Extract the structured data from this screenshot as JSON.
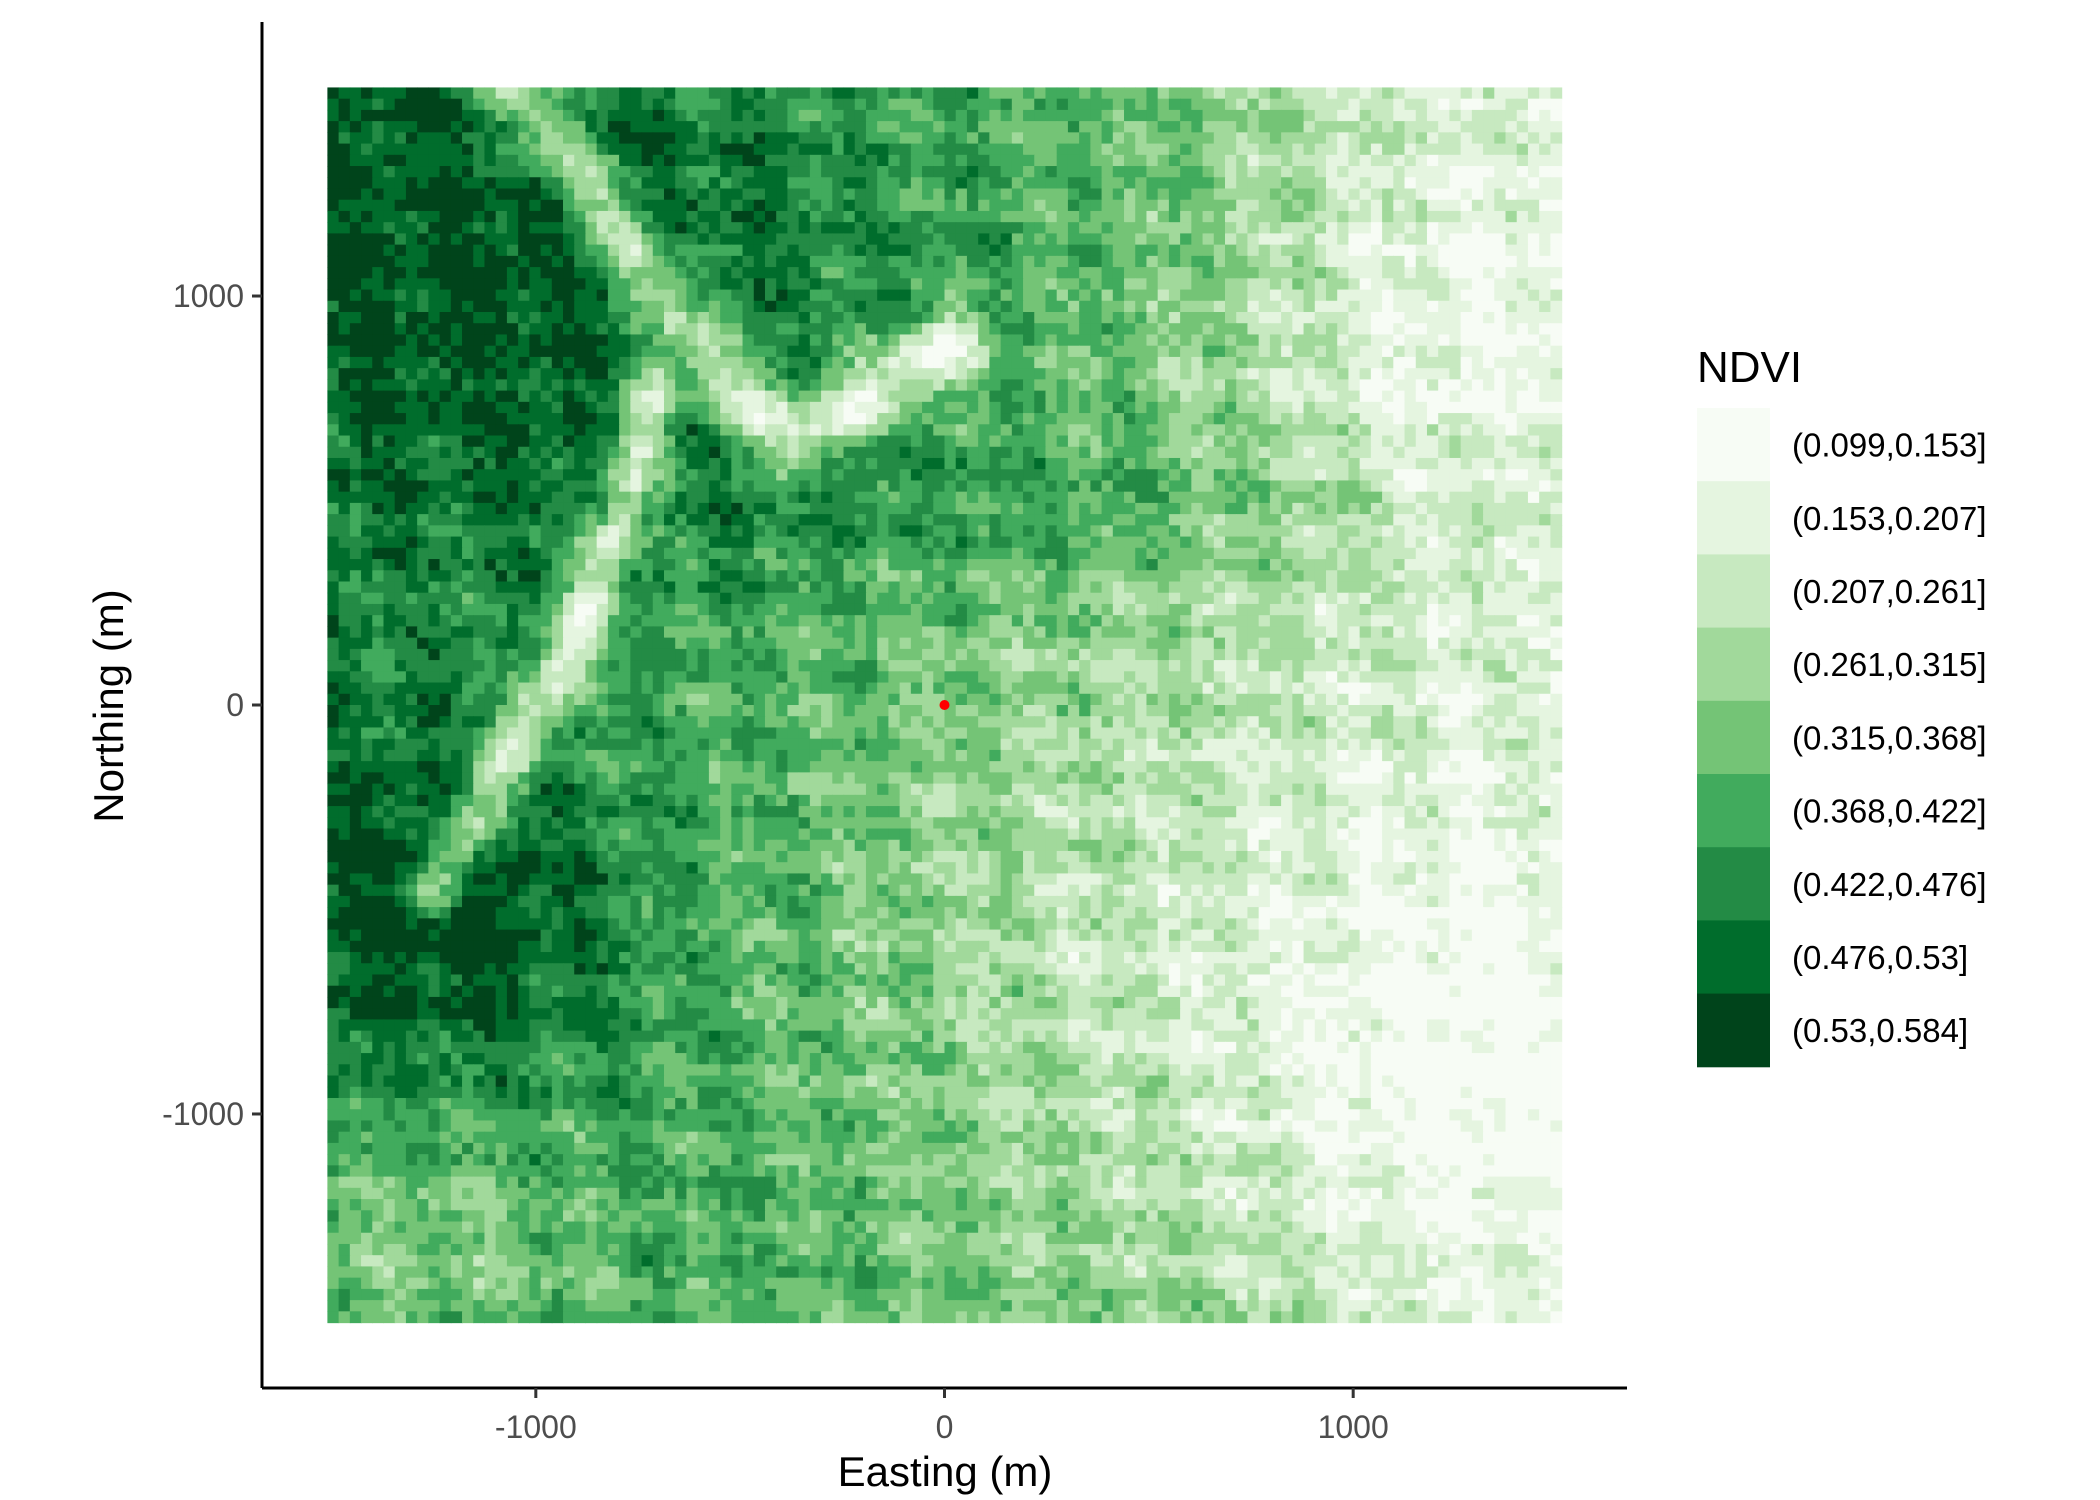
{
  "chart_data": {
    "type": "heatmap",
    "title": "",
    "xlabel": "Easting (m)",
    "ylabel": "Northing (m)",
    "xlim": [
      -1670,
      1670
    ],
    "ylim": [
      -1670,
      1670
    ],
    "raster_extent": {
      "x": [
        -1510,
        1510
      ],
      "y": [
        -1510,
        1510
      ]
    },
    "x_ticks": [
      {
        "value": -1000,
        "label": "-1000"
      },
      {
        "value": 0,
        "label": "0"
      },
      {
        "value": 1000,
        "label": "1000"
      }
    ],
    "y_ticks": [
      {
        "value": 1000,
        "label": "1000"
      },
      {
        "value": 0,
        "label": "0"
      },
      {
        "value": -1000,
        "label": "-1000"
      }
    ],
    "grid": false,
    "legend_position": "right",
    "legend": {
      "title": "NDVI",
      "bins": [
        {
          "label": "(0.099,0.153]",
          "color": "#f7fcf5"
        },
        {
          "label": "(0.153,0.207]",
          "color": "#e5f5e0"
        },
        {
          "label": "(0.207,0.261]",
          "color": "#c7e9c0"
        },
        {
          "label": "(0.261,0.315]",
          "color": "#a1d99b"
        },
        {
          "label": "(0.315,0.368]",
          "color": "#74c476"
        },
        {
          "label": "(0.368,0.422]",
          "color": "#41ab5d"
        },
        {
          "label": "(0.422,0.476]",
          "color": "#238b45"
        },
        {
          "label": "(0.476,0.53]",
          "color": "#006d2c"
        },
        {
          "label": "(0.53,0.584]",
          "color": "#00441b"
        }
      ]
    },
    "center_point": {
      "x": 0,
      "y": 0,
      "color": "#ff0000"
    }
  }
}
